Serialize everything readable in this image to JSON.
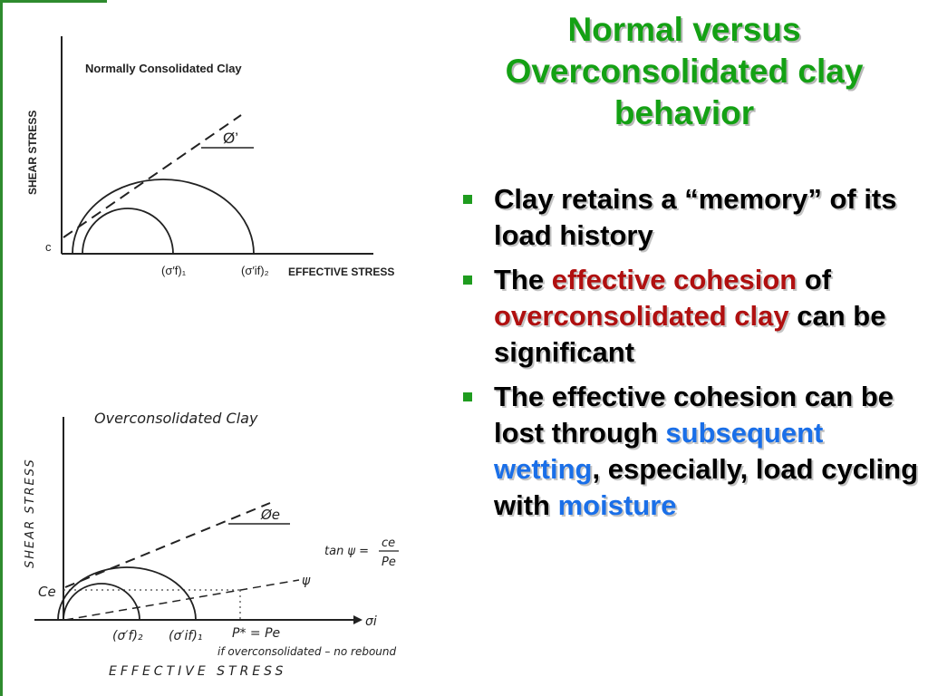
{
  "slide": {
    "title_lines": [
      "Normal versus",
      "Overconsolidated clay",
      "behavior"
    ],
    "bullets": [
      {
        "parts": [
          {
            "text": "Clay retains a “memory” of its load history",
            "style": "normal"
          }
        ]
      },
      {
        "parts": [
          {
            "text": "The ",
            "style": "normal"
          },
          {
            "text": "effective cohesion",
            "style": "red"
          },
          {
            "text": " of ",
            "style": "normal"
          },
          {
            "text": "overconsolidated clay",
            "style": "red"
          },
          {
            "text": " can be significant",
            "style": "normal"
          }
        ]
      },
      {
        "parts": [
          {
            "text": "The effective cohesion can be lost through ",
            "style": "normal"
          },
          {
            "text": "subsequent wetting",
            "style": "blue"
          },
          {
            "text": ", especially, load cycling with ",
            "style": "normal"
          },
          {
            "text": "moisture",
            "style": "blue"
          }
        ]
      }
    ],
    "accent_color": "#14a114",
    "highlight_red": "#b01010",
    "highlight_blue": "#1a6fe8"
  },
  "diagram_top": {
    "title": "Normally Consolidated Clay",
    "y_label": "SHEAR STRESS",
    "x_label": "EFFECTIVE STRESS",
    "intercept_label": "c",
    "angle_label": "Ø’",
    "tick1": "(σ′f)₁",
    "tick2": "(σ′if)₂"
  },
  "diagram_bottom": {
    "title": "Overconsolidated Clay",
    "y_label": "SHEAR STRESS",
    "x_label": "EFFECTIVE STRESS",
    "intercept_label": "Ce",
    "angle_label": "Øe",
    "psi_label": "ψ",
    "x_axis_symbol": "σi",
    "tick1": "(σ′f)₂",
    "tick2": "(σ′if)₁",
    "tick3": "P* = Pe",
    "formula_lhs": "tan ψ =",
    "formula_num": "ce",
    "formula_den": "Pe",
    "note": "if overconsolidated – no rebound"
  }
}
